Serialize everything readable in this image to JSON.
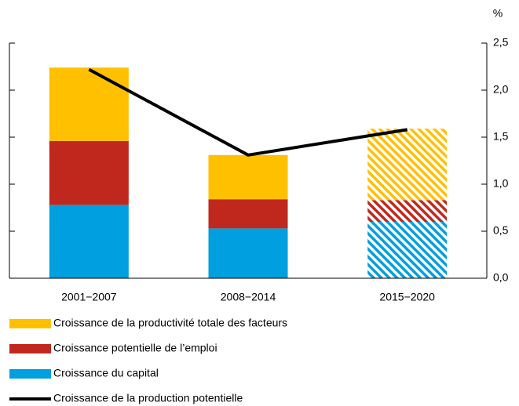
{
  "chart_data": {
    "type": "bar",
    "stacked": true,
    "unit": "%",
    "categories": [
      "2001−2007",
      "2008−2014",
      "2015−2020"
    ],
    "hatched": [
      false,
      false,
      true
    ],
    "series": [
      {
        "name": "Croissance de la productivité totale des facteurs",
        "color": "#ffc000",
        "values": [
          0.78,
          0.47,
          0.76
        ]
      },
      {
        "name": "Croissance potentielle de l’emploi",
        "color": "#c0281e",
        "values": [
          0.68,
          0.31,
          0.23
        ]
      },
      {
        "name": "Croissance du capital",
        "color": "#009fdf",
        "values": [
          0.78,
          0.53,
          0.6
        ]
      },
      {
        "name": "Croissance de la production potentielle",
        "type": "line",
        "color": "#000000",
        "values": [
          2.22,
          1.31,
          1.58
        ]
      }
    ],
    "ylim": [
      0,
      2.5
    ],
    "yticks": [
      {
        "value": 0,
        "label": "0,0"
      },
      {
        "value": 0.5,
        "label": "0,5"
      },
      {
        "value": 1,
        "label": "1,0"
      },
      {
        "value": 1.5,
        "label": "1,5"
      },
      {
        "value": 2,
        "label": "2,0"
      },
      {
        "value": 2.5,
        "label": "2,5"
      }
    ],
    "grid": false
  }
}
